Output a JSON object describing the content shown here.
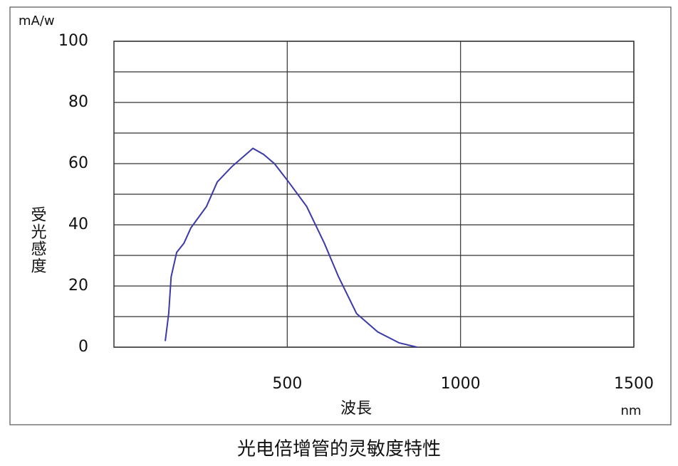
{
  "chart_data": {
    "type": "line",
    "y_unit": "mA/w",
    "y_label": "受光感度",
    "x_label": "波長",
    "x_unit": "nm",
    "caption": "光电倍增管的灵敏度特性",
    "x": [
      148,
      158,
      165,
      181,
      202,
      222,
      267,
      298,
      340,
      401,
      432,
      463,
      504,
      556,
      607,
      648,
      700,
      761,
      823,
      875
    ],
    "series": [
      {
        "name": "受光感度",
        "color": "#3a3aa8",
        "values": [
          2,
          11,
          23,
          31,
          34,
          39,
          46,
          54,
          59,
          65,
          63,
          60,
          54,
          46,
          34,
          23,
          11,
          5,
          1.4,
          0
        ]
      }
    ],
    "xlim": [
      0,
      1500
    ],
    "xticks": [
      500,
      1000,
      1500
    ],
    "ylim": [
      0,
      100
    ],
    "yticks": [
      0,
      20,
      40,
      60,
      80,
      100
    ],
    "grid": true
  }
}
